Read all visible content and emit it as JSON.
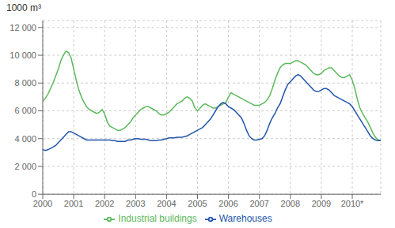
{
  "chart_data": {
    "type": "line",
    "title": "1000 m³",
    "x": [
      2000,
      2000.0833,
      2000.1667,
      2000.25,
      2000.3333,
      2000.4167,
      2000.5,
      2000.5833,
      2000.6667,
      2000.75,
      2000.8333,
      2000.9167,
      2001,
      2001.0833,
      2001.1667,
      2001.25,
      2001.3333,
      2001.4167,
      2001.5,
      2001.5833,
      2001.6667,
      2001.75,
      2001.8333,
      2001.9167,
      2002,
      2002.0833,
      2002.1667,
      2002.25,
      2002.3333,
      2002.4167,
      2002.5,
      2002.5833,
      2002.6667,
      2002.75,
      2002.8333,
      2002.9167,
      2003,
      2003.0833,
      2003.1667,
      2003.25,
      2003.3333,
      2003.4167,
      2003.5,
      2003.5833,
      2003.6667,
      2003.75,
      2003.8333,
      2003.9167,
      2004,
      2004.0833,
      2004.1667,
      2004.25,
      2004.3333,
      2004.4167,
      2004.5,
      2004.5833,
      2004.6667,
      2004.75,
      2004.8333,
      2004.9167,
      2005,
      2005.0833,
      2005.1667,
      2005.25,
      2005.3333,
      2005.4167,
      2005.5,
      2005.5833,
      2005.6667,
      2005.75,
      2005.8333,
      2005.9167,
      2006,
      2006.0833,
      2006.1667,
      2006.25,
      2006.3333,
      2006.4167,
      2006.5,
      2006.5833,
      2006.6667,
      2006.75,
      2006.8333,
      2006.9167,
      2007,
      2007.0833,
      2007.1667,
      2007.25,
      2007.3333,
      2007.4167,
      2007.5,
      2007.5833,
      2007.6667,
      2007.75,
      2007.8333,
      2007.9167,
      2008,
      2008.0833,
      2008.1667,
      2008.25,
      2008.3333,
      2008.4167,
      2008.5,
      2008.5833,
      2008.6667,
      2008.75,
      2008.8333,
      2008.9167,
      2009,
      2009.0833,
      2009.1667,
      2009.25,
      2009.3333,
      2009.4167,
      2009.5,
      2009.5833,
      2009.6667,
      2009.75,
      2009.8333,
      2009.9167,
      2010,
      2010.0833,
      2010.1667,
      2010.25,
      2010.3333,
      2010.4167,
      2010.5,
      2010.5833,
      2010.6667,
      2010.75,
      2010.8333,
      2010.9167
    ],
    "series": [
      {
        "name": "Industrial buildings",
        "color": "#5cb85c",
        "values": [
          6700,
          6900,
          7200,
          7600,
          8000,
          8500,
          9000,
          9600,
          10000,
          10300,
          10200,
          9800,
          9000,
          8200,
          7500,
          7000,
          6600,
          6300,
          6100,
          6000,
          5900,
          5800,
          5900,
          6100,
          5800,
          5200,
          4900,
          4800,
          4700,
          4600,
          4600,
          4700,
          4800,
          5000,
          5200,
          5500,
          5700,
          5900,
          6100,
          6200,
          6300,
          6300,
          6200,
          6100,
          6000,
          5800,
          5700,
          5700,
          5800,
          5900,
          6100,
          6300,
          6500,
          6600,
          6700,
          6900,
          7000,
          6900,
          6700,
          6200,
          6000,
          6200,
          6400,
          6500,
          6400,
          6300,
          6200,
          6200,
          6300,
          6400,
          6500,
          6600,
          7000,
          7300,
          7200,
          7100,
          7000,
          6900,
          6800,
          6700,
          6600,
          6500,
          6400,
          6400,
          6400,
          6500,
          6600,
          6800,
          7100,
          7600,
          8200,
          8700,
          9100,
          9300,
          9400,
          9400,
          9400,
          9500,
          9600,
          9600,
          9500,
          9400,
          9300,
          9100,
          8900,
          8700,
          8600,
          8600,
          8700,
          8900,
          9000,
          9100,
          9100,
          8900,
          8700,
          8500,
          8400,
          8400,
          8500,
          8600,
          8200,
          7600,
          6800,
          6200,
          5800,
          5500,
          5200,
          4800,
          4400,
          4100,
          3900,
          3900
        ]
      },
      {
        "name": "Warehouses",
        "color": "#2255aa",
        "values": [
          3200,
          3150,
          3200,
          3300,
          3400,
          3500,
          3700,
          3900,
          4100,
          4300,
          4500,
          4500,
          4400,
          4300,
          4200,
          4100,
          4000,
          3900,
          3900,
          3900,
          3900,
          3900,
          3900,
          3900,
          3900,
          3900,
          3900,
          3850,
          3850,
          3800,
          3800,
          3800,
          3800,
          3900,
          3900,
          3950,
          4000,
          4000,
          3950,
          3950,
          3950,
          3900,
          3850,
          3850,
          3850,
          3900,
          3900,
          3950,
          4000,
          4050,
          4050,
          4050,
          4100,
          4100,
          4100,
          4150,
          4200,
          4300,
          4400,
          4500,
          4600,
          4700,
          4800,
          5000,
          5200,
          5400,
          5700,
          6000,
          6300,
          6500,
          6600,
          6500,
          6300,
          6200,
          6100,
          5900,
          5700,
          5500,
          5100,
          4600,
          4200,
          4000,
          3900,
          3900,
          3950,
          4000,
          4200,
          4600,
          5100,
          5500,
          5800,
          6200,
          6500,
          7000,
          7500,
          7900,
          8100,
          8300,
          8500,
          8600,
          8500,
          8300,
          8100,
          7900,
          7700,
          7500,
          7400,
          7400,
          7500,
          7600,
          7600,
          7500,
          7300,
          7100,
          7000,
          6900,
          6800,
          6700,
          6600,
          6500,
          6300,
          6000,
          5700,
          5400,
          5100,
          4800,
          4500,
          4200,
          4000,
          3900,
          3850,
          3850
        ]
      }
    ],
    "xlim": [
      2000,
      2010.92
    ],
    "xticks": [
      2000,
      2001,
      2002,
      2003,
      2004,
      2005,
      2006,
      2007,
      2008,
      2009,
      {
        "value": 2010,
        "label": "2010*"
      }
    ],
    "ylim": [
      0,
      12500
    ],
    "yticks": [
      0,
      {
        "value": 2000,
        "label": "2 000"
      },
      {
        "value": 4000,
        "label": "4 000"
      },
      {
        "value": 6000,
        "label": "6 000"
      },
      {
        "value": 8000,
        "label": "8 000"
      },
      {
        "value": 10000,
        "label": "10 000"
      },
      {
        "value": 12000,
        "label": "12 000"
      }
    ],
    "grid": true,
    "legend": "bottom"
  }
}
